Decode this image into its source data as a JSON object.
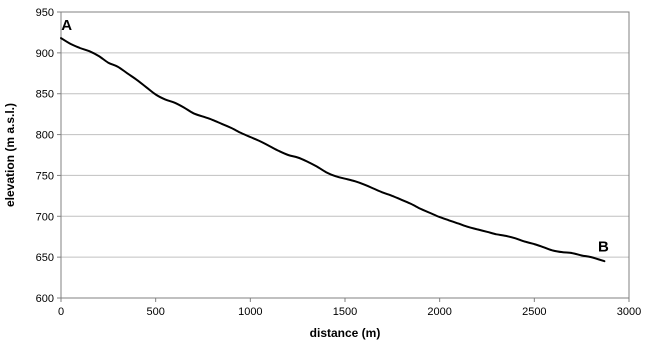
{
  "chart_data": {
    "type": "line",
    "title": "",
    "xlabel": "distance (m)",
    "ylabel": "elevation (m a.s.l.)",
    "xlim": [
      0,
      3000
    ],
    "ylim": [
      600,
      950
    ],
    "x_ticks": [
      0,
      500,
      1000,
      1500,
      2000,
      2500,
      3000
    ],
    "y_ticks": [
      600,
      650,
      700,
      750,
      800,
      850,
      900,
      950
    ],
    "grid": "horizontal",
    "legend": "none",
    "colors": {
      "line": "#000000",
      "grid": "#c0c0c0",
      "axis": "#808080"
    },
    "series": [
      {
        "x": [
          0,
          50,
          100,
          150,
          200,
          250,
          300,
          350,
          400,
          450,
          500,
          550,
          600,
          650,
          700,
          750,
          800,
          850,
          900,
          950,
          1000,
          1050,
          1100,
          1150,
          1200,
          1250,
          1300,
          1350,
          1400,
          1450,
          1500,
          1550,
          1600,
          1650,
          1700,
          1750,
          1800,
          1850,
          1900,
          1950,
          2000,
          2050,
          2100,
          2150,
          2200,
          2250,
          2300,
          2350,
          2400,
          2450,
          2500,
          2550,
          2600,
          2650,
          2700,
          2750,
          2800,
          2870
        ],
        "y": [
          918,
          911,
          906,
          902,
          896,
          888,
          883,
          875,
          867,
          858,
          849,
          843,
          839,
          833,
          826,
          822,
          818,
          813,
          808,
          802,
          797,
          792,
          786,
          780,
          775,
          772,
          767,
          761,
          754,
          749,
          746,
          743,
          739,
          734,
          729,
          725,
          720,
          715,
          709,
          704,
          699,
          695,
          691,
          687,
          684,
          681,
          678,
          676,
          673,
          669,
          666,
          662,
          658,
          656,
          655,
          652,
          650,
          645
        ]
      }
    ],
    "annotations": [
      {
        "text": "A",
        "x": 30,
        "y": 928
      },
      {
        "text": "B",
        "x": 2865,
        "y": 657
      }
    ]
  }
}
